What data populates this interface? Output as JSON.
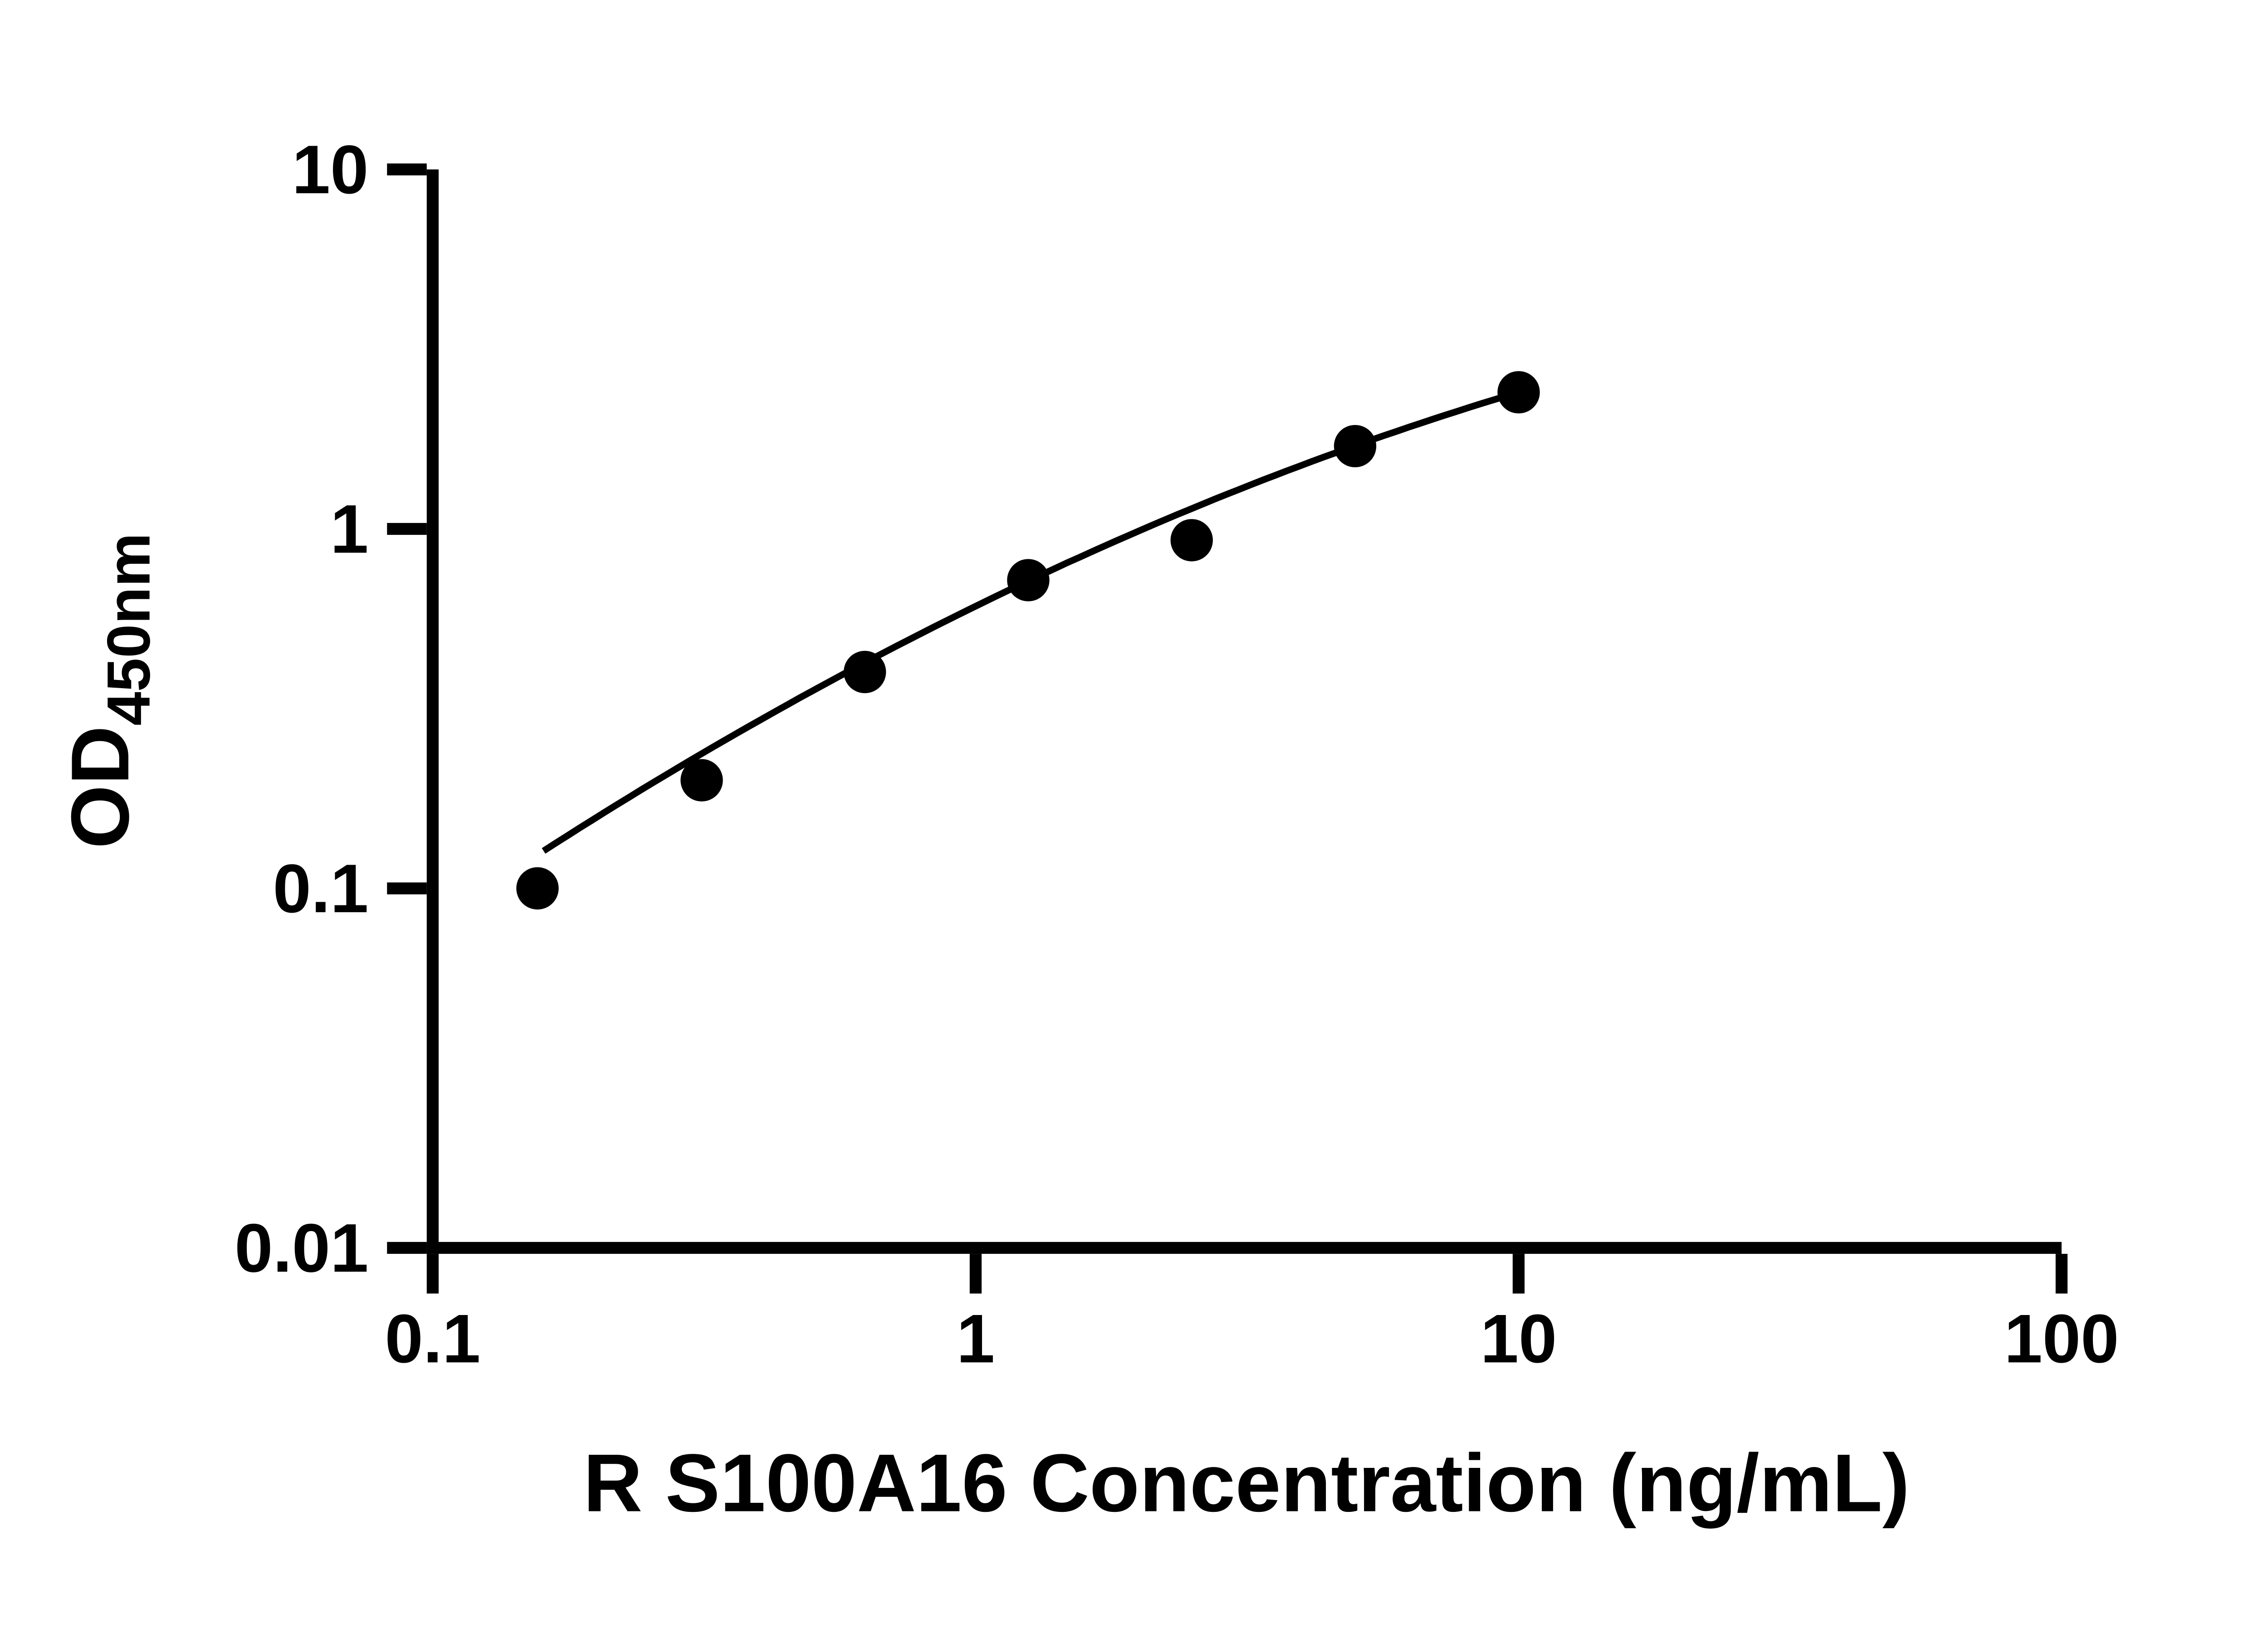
{
  "chart_data": {
    "type": "scatter",
    "title": "",
    "xlabel": "R S100A16 Concentration (ng/mL)",
    "ylabel_main": "OD",
    "ylabel_sub": "450nm",
    "x_scale": "log",
    "y_scale": "log",
    "xlim": [
      0.1,
      100
    ],
    "ylim": [
      0.01,
      10
    ],
    "x_ticks": [
      0.1,
      1,
      10,
      100
    ],
    "x_tick_labels": [
      "0.1",
      "1",
      "10",
      "100"
    ],
    "y_ticks": [
      0.01,
      0.1,
      1,
      10
    ],
    "y_tick_labels": [
      "0.01",
      "0.1",
      "1",
      "10"
    ],
    "grid": false,
    "legend": "none",
    "marker_color": "#000000",
    "line_color": "#000000",
    "axis_color": "#000000",
    "points": [
      {
        "x": 0.156,
        "y": 0.1
      },
      {
        "x": 0.313,
        "y": 0.2
      },
      {
        "x": 0.625,
        "y": 0.4
      },
      {
        "x": 1.25,
        "y": 0.72
      },
      {
        "x": 2.5,
        "y": 0.93
      },
      {
        "x": 5.0,
        "y": 1.7
      },
      {
        "x": 10.0,
        "y": 2.4
      }
    ],
    "fit_curve": {
      "type": "quadratic-loglog",
      "coeffs": {
        "a": -0.215,
        "b": 0.74,
        "c": -0.145
      },
      "x_range": [
        0.16,
        10.0
      ]
    }
  }
}
